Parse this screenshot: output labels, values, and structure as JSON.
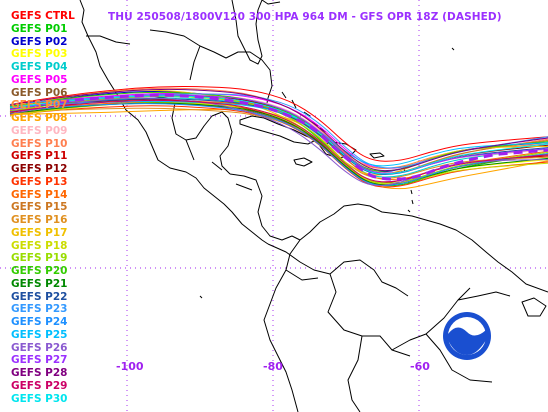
{
  "title": "THU 250508/1800V120  300 HPA 964 DM - GFS OPR 18Z (DASHED)",
  "legend": [
    {
      "label": "GEFS CTRL",
      "color": "#ff0000"
    },
    {
      "label": "GEFS P01",
      "color": "#00cc00"
    },
    {
      "label": "GEFS P02",
      "color": "#0000cc"
    },
    {
      "label": "GEFS P03",
      "color": "#ffff00"
    },
    {
      "label": "GEFS P04",
      "color": "#00cccc"
    },
    {
      "label": "GEFS P05",
      "color": "#ff00ff"
    },
    {
      "label": "GEFS P06",
      "color": "#8b5a2b"
    },
    {
      "label": "GEFS P07",
      "color": "#ff8c3a"
    },
    {
      "label": "GEFS P08",
      "color": "#ffa500"
    },
    {
      "label": "GEFS P09",
      "color": "#ffb6c1"
    },
    {
      "label": "GEFS P10",
      "color": "#ff7f50"
    },
    {
      "label": "GEFS P11",
      "color": "#cc0000"
    },
    {
      "label": "GEFS P12",
      "color": "#8b0000"
    },
    {
      "label": "GEFS P13",
      "color": "#ff3300"
    },
    {
      "label": "GEFS P14",
      "color": "#ff6600"
    },
    {
      "label": "GEFS P15",
      "color": "#cc7722"
    },
    {
      "label": "GEFS P16",
      "color": "#e09020"
    },
    {
      "label": "GEFS P17",
      "color": "#f0c000"
    },
    {
      "label": "GEFS P18",
      "color": "#ccdd00"
    },
    {
      "label": "GEFS P19",
      "color": "#99dd00"
    },
    {
      "label": "GEFS P20",
      "color": "#33cc00"
    },
    {
      "label": "GEFS P21",
      "color": "#008800"
    },
    {
      "label": "GEFS P22",
      "color": "#1e4fa0"
    },
    {
      "label": "GEFS P23",
      "color": "#3399ff"
    },
    {
      "label": "GEFS P24",
      "color": "#1e90ff"
    },
    {
      "label": "GEFS P25",
      "color": "#00bfff"
    },
    {
      "label": "GEFS P26",
      "color": "#8a5ad0"
    },
    {
      "label": "GEFS P27",
      "color": "#9b30ff"
    },
    {
      "label": "GEFS P28",
      "color": "#800080"
    },
    {
      "label": "GEFS P29",
      "color": "#cc0066"
    },
    {
      "label": "GEFS P30",
      "color": "#00e5ee"
    }
  ],
  "longitude_labels": [
    "-100",
    "-80",
    "-60"
  ],
  "logo_text": "NOAA",
  "colors": {
    "title": "#9b30ff",
    "gfs_opr_dashed": "#a020f0",
    "coastline": "#000000",
    "graticule": "#a020f0",
    "logo": "#1a4fd0"
  }
}
